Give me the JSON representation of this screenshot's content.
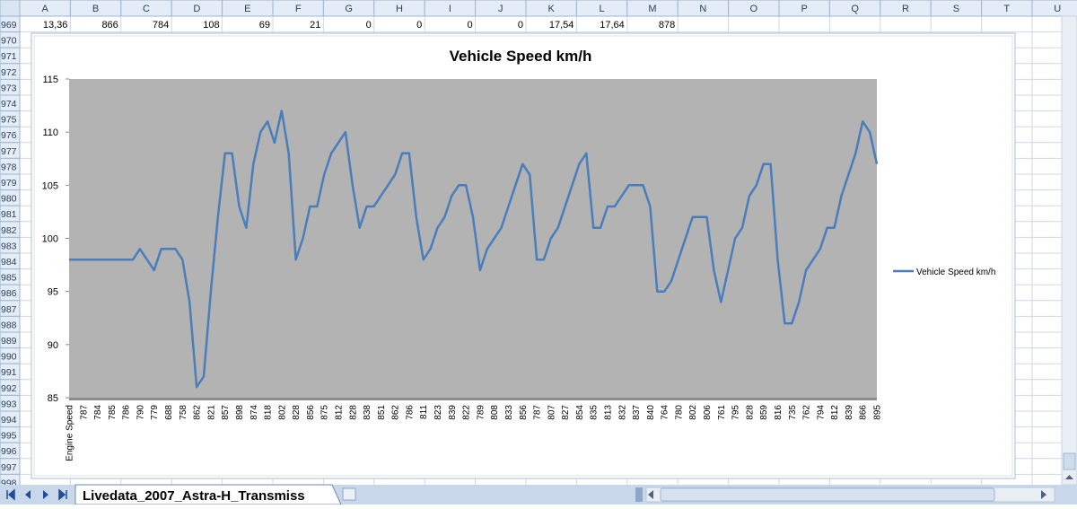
{
  "spreadsheet": {
    "columns": [
      "A",
      "B",
      "C",
      "D",
      "E",
      "F",
      "G",
      "H",
      "I",
      "J",
      "K",
      "L",
      "M",
      "N",
      "O",
      "P",
      "Q",
      "R",
      "S",
      "T",
      "U"
    ],
    "rows": [
      969,
      970,
      971,
      972,
      973,
      974,
      975,
      976,
      977,
      978,
      979,
      980,
      981,
      982,
      983,
      984,
      985,
      986,
      987,
      988,
      989,
      990,
      991,
      992,
      993,
      994,
      995,
      996,
      997,
      998
    ],
    "row_969_cells": [
      "13,36",
      "866",
      "784",
      "108",
      "69",
      "21",
      "0",
      "0",
      "0",
      "0",
      "17,54",
      "17,64",
      "878"
    ],
    "sheet_tab": "Livedata_2007_Astra-H_Transmiss"
  },
  "chart_data": {
    "type": "line",
    "title": "Vehicle Speed km/h",
    "categories": [
      "Engine Speed",
      null,
      "787",
      null,
      "784",
      null,
      "785",
      null,
      "786",
      null,
      "790",
      null,
      "779",
      null,
      "688",
      null,
      "758",
      null,
      "862",
      null,
      "821",
      null,
      "857",
      null,
      "898",
      null,
      "874",
      null,
      "818",
      null,
      "802",
      null,
      "828",
      null,
      "856",
      null,
      "875",
      null,
      "812",
      null,
      "828",
      null,
      "838",
      null,
      "851",
      null,
      "862",
      null,
      "786",
      null,
      "811",
      null,
      "823",
      null,
      "839",
      null,
      "822",
      null,
      "789",
      null,
      "808",
      null,
      "833",
      null,
      "856",
      null,
      "787",
      null,
      "807",
      null,
      "827",
      null,
      "854",
      null,
      "835",
      null,
      "813",
      null,
      "832",
      null,
      "837",
      null,
      "840",
      null,
      "764",
      null,
      "780",
      null,
      "802",
      null,
      "806",
      null,
      "761",
      null,
      "795",
      null,
      "828",
      null,
      "859",
      null,
      "816",
      null,
      "735",
      null,
      "762",
      null,
      "794",
      null,
      "812",
      null,
      "839",
      null,
      "866",
      null,
      "895"
    ],
    "series": [
      {
        "name": "Vehicle Speed km/h",
        "color": "#4a7ebb",
        "values": [
          98,
          98,
          98,
          98,
          98,
          98,
          98,
          98,
          98,
          98,
          99,
          98,
          97,
          99,
          99,
          99,
          98,
          94,
          86,
          87,
          95,
          102,
          108,
          108,
          103,
          101,
          107,
          110,
          111,
          109,
          112,
          108,
          98,
          100,
          103,
          103,
          106,
          108,
          109,
          110,
          105,
          101,
          103,
          103,
          104,
          105,
          106,
          108,
          108,
          102,
          98,
          99,
          101,
          102,
          104,
          105,
          105,
          102,
          97,
          99,
          100,
          101,
          103,
          105,
          107,
          106,
          98,
          98,
          100,
          101,
          103,
          105,
          107,
          108,
          101,
          101,
          103,
          103,
          104,
          105,
          105,
          105,
          103,
          95,
          95,
          96,
          98,
          100,
          102,
          102,
          102,
          97,
          94,
          97,
          100,
          101,
          104,
          105,
          107,
          107,
          98,
          92,
          92,
          94,
          97,
          98,
          99,
          101,
          101,
          104,
          106,
          108,
          111,
          110,
          107
        ]
      }
    ],
    "ylim": [
      85,
      115
    ],
    "yticks": [
      85,
      90,
      95,
      100,
      105,
      110,
      115
    ],
    "plot_background": "#b3b3b3",
    "legend": "right"
  }
}
